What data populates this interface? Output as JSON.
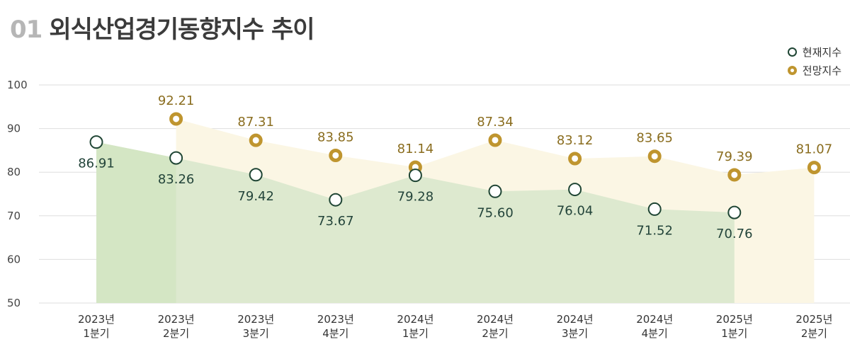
{
  "header": {
    "number": "01",
    "title": "외식산업경기동향지수 추이"
  },
  "legend": {
    "current": "현재지수",
    "forecast": "전망지수"
  },
  "chart_data": {
    "type": "line",
    "title": "외식산업경기동향지수 추이",
    "categories": [
      [
        "2023년",
        "1분기"
      ],
      [
        "2023년",
        "2분기"
      ],
      [
        "2023년",
        "3분기"
      ],
      [
        "2023년",
        "4분기"
      ],
      [
        "2024년",
        "1분기"
      ],
      [
        "2024년",
        "2분기"
      ],
      [
        "2024년",
        "3분기"
      ],
      [
        "2024년",
        "4분기"
      ],
      [
        "2025년",
        "1분기"
      ],
      [
        "2025년",
        "2분기"
      ]
    ],
    "series": [
      {
        "name": "현재지수",
        "color": "#1f4534",
        "fill": "#dde9cf",
        "values": [
          86.91,
          83.26,
          79.42,
          73.67,
          79.28,
          75.6,
          76.04,
          71.52,
          70.76,
          null
        ],
        "labels": [
          "86.91",
          "83.26",
          "79.42",
          "73.67",
          "79.28",
          "75.60",
          "76.04",
          "71.52",
          "70.76",
          ""
        ]
      },
      {
        "name": "전망지수",
        "color": "#bf952f",
        "fill": "#fbf6e4",
        "values": [
          null,
          92.21,
          87.31,
          83.85,
          81.14,
          87.34,
          83.12,
          83.65,
          79.39,
          81.07
        ],
        "labels": [
          "",
          "92.21",
          "87.31",
          "83.85",
          "81.14",
          "87.34",
          "83.12",
          "83.65",
          "79.39",
          "81.07"
        ]
      }
    ],
    "ylim": [
      50,
      100
    ],
    "yticks": [
      50,
      60,
      70,
      80,
      90,
      100
    ],
    "grid": true,
    "legend_position": "top-right"
  }
}
